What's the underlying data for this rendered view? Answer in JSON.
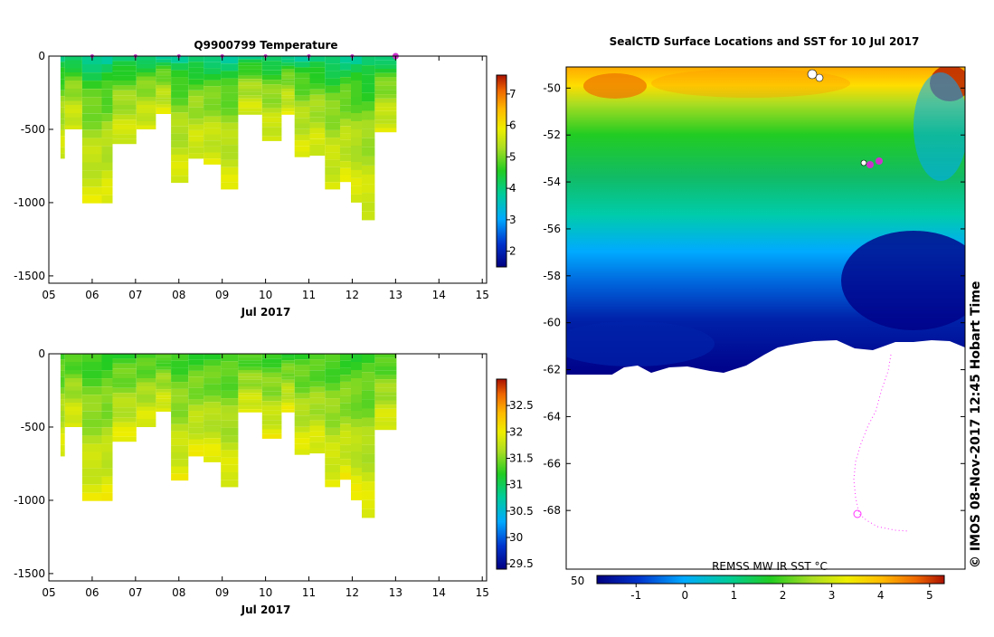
{
  "panels": [
    {
      "title": "Q9900799  Temperature",
      "variable": "temperature",
      "xlabel": "Jul 2017",
      "x_ticks": [
        "05",
        "06",
        "07",
        "08",
        "09",
        "10",
        "11",
        "12",
        "13",
        "14",
        "15"
      ],
      "y_ticks": [
        "0",
        "-500",
        "-1000",
        "-1500"
      ],
      "colorbar_ticks": [
        "2",
        "3",
        "4",
        "5",
        "6",
        "7"
      ],
      "colorbar_range": [
        1.5,
        7.6
      ],
      "ylim": [
        -1550,
        0
      ],
      "xlim": [
        5,
        15.1
      ]
    },
    {
      "title": "",
      "variable": "salinity",
      "xlabel": "Jul 2017",
      "x_ticks": [
        "05",
        "06",
        "07",
        "08",
        "09",
        "10",
        "11",
        "12",
        "13",
        "14",
        "15"
      ],
      "y_ticks": [
        "0",
        "-500",
        "-1000",
        "-1500"
      ],
      "colorbar_ticks": [
        "29.5",
        "30",
        "30.5",
        "31",
        "31.5",
        "32",
        "32.5"
      ],
      "colorbar_range": [
        29.4,
        33.0
      ],
      "ylim": [
        -1550,
        0
      ],
      "xlim": [
        5,
        15.1
      ]
    }
  ],
  "map": {
    "title": "SealCTD Surface Locations and SST for 10 Jul 2017",
    "lat_ticks": [
      "-50",
      "-52",
      "-54",
      "-56",
      "-58",
      "-60",
      "-62",
      "-64",
      "-66",
      "-68"
    ],
    "colorbar_label": "REMSS MW IR SST °C",
    "colorbar_ticks": [
      "-1",
      "0",
      "1",
      "2",
      "3",
      "4",
      "5"
    ],
    "colorbar_left_label": "50",
    "stamp": "© IMOS 08-Nov-2017 12:45 Hobart Time"
  },
  "colors": {
    "sea_track": "#ff33ff",
    "marker": "#cc33cc",
    "land_white": "#ffffff"
  },
  "chart_data": [
    {
      "type": "heatmap",
      "title": "Q9900799  Temperature",
      "xlabel": "Jul 2017",
      "ylabel": "",
      "xlim": [
        5,
        15.1
      ],
      "ylim": [
        -1550,
        0
      ],
      "colorbar": [
        1.5,
        7.6
      ],
      "profiles": [
        {
          "x": 5.25,
          "max_depth": -700
        },
        {
          "x": 5.35,
          "max_depth": -500
        },
        {
          "x": 5.75,
          "max_depth": -1005
        },
        {
          "x": 6.2,
          "max_depth": -1005
        },
        {
          "x": 6.45,
          "max_depth": -600
        },
        {
          "x": 7.0,
          "max_depth": -500
        },
        {
          "x": 7.45,
          "max_depth": -395
        },
        {
          "x": 7.8,
          "max_depth": -865
        },
        {
          "x": 8.2,
          "max_depth": -700
        },
        {
          "x": 8.55,
          "max_depth": -740
        },
        {
          "x": 8.95,
          "max_depth": -910
        },
        {
          "x": 9.35,
          "max_depth": -400
        },
        {
          "x": 9.9,
          "max_depth": -580
        },
        {
          "x": 10.35,
          "max_depth": -400
        },
        {
          "x": 10.65,
          "max_depth": -690
        },
        {
          "x": 11.0,
          "max_depth": -680
        },
        {
          "x": 11.35,
          "max_depth": -910
        },
        {
          "x": 11.7,
          "max_depth": -860
        },
        {
          "x": 11.95,
          "max_depth": -1000
        },
        {
          "x": 12.2,
          "max_depth": -1120
        },
        {
          "x": 12.5,
          "max_depth": -520
        }
      ],
      "surface_marker_days": [
        6.0,
        7.0,
        8.0,
        9.0,
        10.0,
        11.0,
        12.0,
        13.0
      ]
    },
    {
      "type": "heatmap",
      "title": "",
      "xlabel": "Jul 2017",
      "ylabel": "",
      "xlim": [
        5,
        15.1
      ],
      "ylim": [
        -1550,
        0
      ],
      "colorbar": [
        29.4,
        33.0
      ]
    },
    {
      "type": "heatmap",
      "title": "SealCTD Surface Locations and SST for 10 Jul 2017",
      "xlabel": "",
      "ylabel": "",
      "ylim": [
        -70.5,
        -49.1
      ],
      "colorbar": [
        -1.8,
        5.3
      ],
      "colorbar_label": "REMSS MW IR SST °C",
      "ice_edge_lat": -61.5
    }
  ]
}
